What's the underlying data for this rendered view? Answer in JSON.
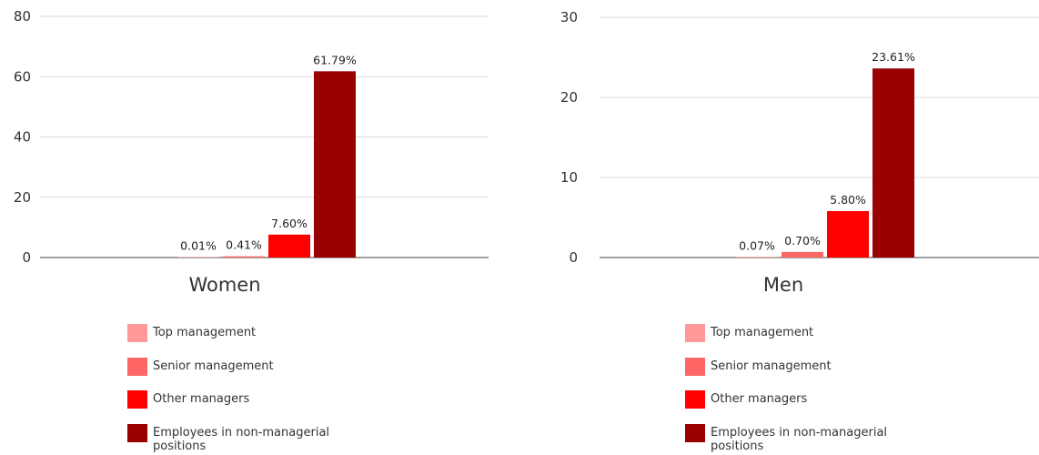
{
  "chart_data": [
    {
      "type": "bar",
      "categories": [
        "Women"
      ],
      "series": [
        {
          "name": "Top management",
          "values": [
            0.01
          ],
          "label": "0.01%",
          "color": "#ff9999"
        },
        {
          "name": "Senior management",
          "values": [
            0.41
          ],
          "label": "0.41%",
          "color": "#ff6666"
        },
        {
          "name": "Other managers",
          "values": [
            7.6
          ],
          "label": "7.60%",
          "color": "#ff0000"
        },
        {
          "name": "Employees in non-managerial positions",
          "values": [
            61.79
          ],
          "label": "61.79%",
          "color": "#990000"
        }
      ],
      "ylim": [
        0,
        80
      ],
      "yticks": [
        0,
        20,
        40,
        60,
        80
      ],
      "grid": true,
      "legend": "bottom"
    },
    {
      "type": "bar",
      "categories": [
        "Men"
      ],
      "series": [
        {
          "name": "Top management",
          "values": [
            0.07
          ],
          "label": "0.07%",
          "color": "#ff9999"
        },
        {
          "name": "Senior management",
          "values": [
            0.7
          ],
          "label": "0.70%",
          "color": "#ff6666"
        },
        {
          "name": "Other managers",
          "values": [
            5.8
          ],
          "label": "5.80%",
          "color": "#ff0000"
        },
        {
          "name": "Employees in non-managerial positions",
          "values": [
            23.61
          ],
          "label": "23.61%",
          "color": "#990000"
        }
      ],
      "ylim": [
        0,
        30
      ],
      "yticks": [
        0,
        10,
        20,
        30
      ],
      "grid": true,
      "legend": "bottom"
    }
  ]
}
